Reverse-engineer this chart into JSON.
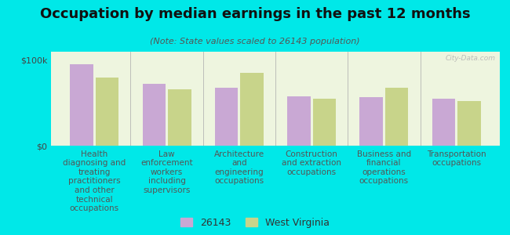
{
  "title": "Occupation by median earnings in the past 12 months",
  "subtitle": "(Note: State values scaled to 26143 population)",
  "background_color": "#00e8e8",
  "plot_bg_color": "#eef5df",
  "bar_color_local": "#c9a8d4",
  "bar_color_state": "#c8d48a",
  "categories": [
    "Health\ndiagnosing and\ntreating\npractitioners\nand other\ntechnical\noccupations",
    "Law\nenforcement\nworkers\nincluding\nsupervisors",
    "Architecture\nand\nengineering\noccupations",
    "Construction\nand extraction\noccupations",
    "Business and\nfinancial\noperations\noccupations",
    "Transportation\noccupations"
  ],
  "values_local": [
    95000,
    72000,
    68000,
    58000,
    57000,
    55000
  ],
  "values_state": [
    80000,
    66000,
    85000,
    55000,
    68000,
    52000
  ],
  "ylim": [
    0,
    110000
  ],
  "yticks": [
    0,
    100000
  ],
  "ytick_labels": [
    "$0",
    "$100k"
  ],
  "legend_labels": [
    "26143",
    "West Virginia"
  ],
  "watermark": "City-Data.com",
  "title_fontsize": 13,
  "subtitle_fontsize": 8,
  "tick_label_fontsize": 7.5,
  "ytick_fontsize": 8
}
